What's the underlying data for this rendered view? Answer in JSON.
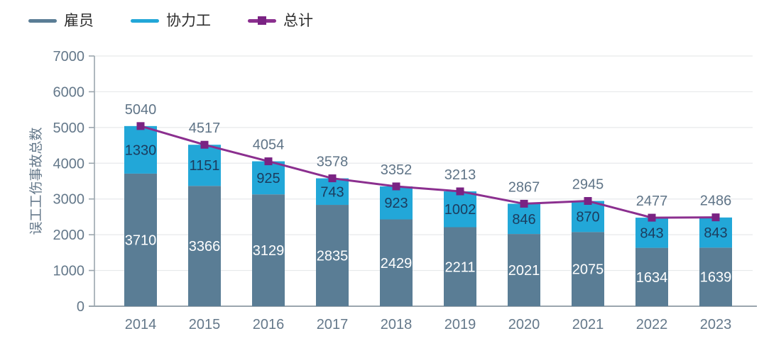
{
  "legend": {
    "items": [
      {
        "label": "雇员",
        "color": "#5a7d95",
        "type": "line"
      },
      {
        "label": "协力工",
        "color": "#22a7d8",
        "type": "line"
      },
      {
        "label": "总计",
        "color": "#8b2f8f",
        "marker_color": "#7a2383",
        "type": "line-marker"
      }
    ]
  },
  "colors": {
    "axis": "#9ba6ae",
    "axis_text": "#64788a",
    "grid": "#e7e9eb",
    "total_label": "#5f7487",
    "background": "#ffffff"
  },
  "chart_data": {
    "type": "bar",
    "subtype": "stacked-bars-with-total-line",
    "title": "",
    "xlabel": "",
    "ylabel": "误工工伤事故总数",
    "ylim": [
      0,
      7000
    ],
    "ytick_step": 1000,
    "grid": "horizontal",
    "legend_position": "top-left",
    "categories": [
      "2014",
      "2015",
      "2016",
      "2017",
      "2018",
      "2019",
      "2020",
      "2021",
      "2022",
      "2023"
    ],
    "series": [
      {
        "name": "雇员",
        "type": "bar-stack-bottom",
        "color": "#5a7d95",
        "label_color": "#ffffff",
        "values": [
          3710,
          3366,
          3129,
          2835,
          2429,
          2211,
          2021,
          2075,
          1634,
          1639
        ]
      },
      {
        "name": "协力工",
        "type": "bar-stack-top",
        "color": "#22a7d8",
        "label_color": "#1c3c5e",
        "values": [
          1330,
          1151,
          925,
          743,
          923,
          1002,
          846,
          870,
          843,
          843
        ]
      }
    ],
    "totals": {
      "name": "总计",
      "type": "line",
      "color": "#8b2f8f",
      "marker_color": "#7a2383",
      "values": [
        5040,
        4517,
        4054,
        3578,
        3352,
        3213,
        2867,
        2945,
        2477,
        2486
      ]
    }
  }
}
